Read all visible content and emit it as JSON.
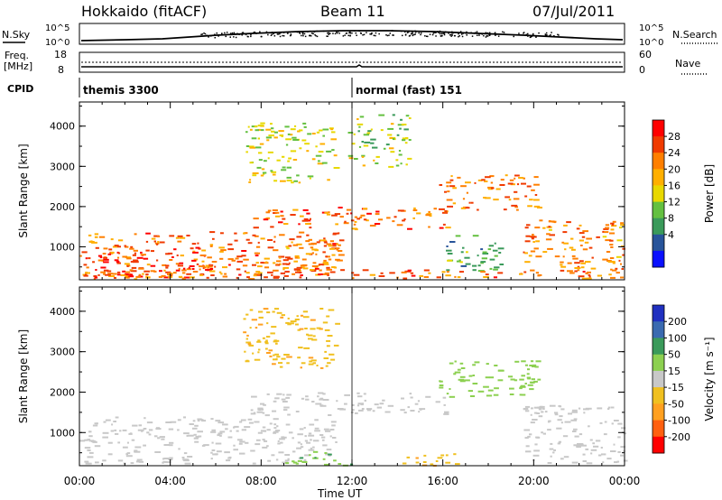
{
  "header": {
    "title": "Hokkaido (fitACF)",
    "beam": "Beam 11",
    "date": "07/Jul/2011"
  },
  "sky_panel": {
    "left_label": "N.Sky",
    "right_label": "N.Search",
    "left_ticks": [
      "10^5",
      "10^0"
    ],
    "right_ticks": [
      "10^5",
      "10^0"
    ]
  },
  "freq_panel": {
    "left_label_1": "Freq.",
    "left_label_2": "[MHz]",
    "right_label": "Nave",
    "left_ticks": [
      "18",
      "8"
    ],
    "right_ticks": [
      "60",
      "0"
    ]
  },
  "cpid_panel": {
    "label": "CPID",
    "modes": [
      {
        "name": "themis 3300",
        "start_hour": 0.0
      },
      {
        "name": "normal (fast) 151",
        "start_hour": 12.0
      }
    ]
  },
  "chart_data": [
    {
      "type": "heatmap",
      "quantity": "Power",
      "ylabel": "Slant Range [km]",
      "xlabel": "Time UT",
      "colorbar_label": "Power [dB]",
      "ylim": [
        180,
        4600
      ],
      "xlim": [
        0,
        24
      ],
      "x_ticks": [
        "00:00",
        "04:00",
        "08:00",
        "12:00",
        "16:00",
        "20:00",
        "00:00"
      ],
      "y_ticks": [
        1000,
        2000,
        3000,
        4000
      ],
      "colorbar": {
        "ticks": [
          "28",
          "24",
          "20",
          "16",
          "12",
          "8",
          "4"
        ],
        "colors": [
          "#ff0000",
          "#f03a00",
          "#ff7f00",
          "#ffaf00",
          "#e8d800",
          "#64c040",
          "#3a9a5a",
          "#28549a",
          "#0a10ff"
        ]
      },
      "regions": [
        {
          "t0": 0.0,
          "t1": 11.5,
          "r0": 250,
          "r1": 1400,
          "v": 24
        },
        {
          "t0": 0.0,
          "t1": 6.0,
          "r0": 250,
          "r1": 900,
          "v": 28
        },
        {
          "t0": 7.5,
          "t1": 16.2,
          "r0": 1450,
          "r1": 2000,
          "v": 25
        },
        {
          "t0": 15.8,
          "t1": 20.2,
          "r0": 1900,
          "r1": 2800,
          "v": 23
        },
        {
          "t0": 19.5,
          "t1": 24.0,
          "r0": 250,
          "r1": 1700,
          "v": 22
        },
        {
          "t0": 7.2,
          "t1": 11.3,
          "r0": 2600,
          "r1": 4100,
          "v": 16
        },
        {
          "t0": 8.5,
          "t1": 11.5,
          "r0": 400,
          "r1": 1200,
          "v": 22
        },
        {
          "t0": 16.0,
          "t1": 18.5,
          "r0": 400,
          "r1": 1300,
          "v": 10
        },
        {
          "t0": 0.0,
          "t1": 24.0,
          "r0": 220,
          "r1": 450,
          "v": 24
        },
        {
          "t0": 11.8,
          "t1": 14.5,
          "r0": 3000,
          "r1": 4300,
          "v": 14
        }
      ]
    },
    {
      "type": "heatmap",
      "quantity": "Velocity",
      "ylabel": "Slant Range [km]",
      "xlabel": "Time UT",
      "colorbar_label": "Velocity [m s^-1]",
      "ylim": [
        180,
        4600
      ],
      "xlim": [
        0,
        24
      ],
      "x_ticks": [
        "00:00",
        "04:00",
        "08:00",
        "12:00",
        "16:00",
        "20:00",
        "00:00"
      ],
      "y_ticks": [
        1000,
        2000,
        3000,
        4000
      ],
      "colorbar": {
        "ticks": [
          "200",
          "100",
          "50",
          "15",
          "-15",
          "-50",
          "-100",
          "-200"
        ],
        "colors": [
          "#2030c0",
          "#3a6ab0",
          "#3a9a5a",
          "#8cd050",
          "#c8c8c8",
          "#f0c020",
          "#ffa020",
          "#ff6010",
          "#ff0000"
        ]
      },
      "regions": [
        {
          "t0": 0.0,
          "t1": 11.5,
          "r0": 250,
          "r1": 1400,
          "v": 0
        },
        {
          "t0": 7.5,
          "t1": 16.2,
          "r0": 1450,
          "r1": 2000,
          "v": 0
        },
        {
          "t0": 15.8,
          "t1": 20.2,
          "r0": 1900,
          "r1": 2800,
          "v": 30
        },
        {
          "t0": 19.5,
          "t1": 24.0,
          "r0": 250,
          "r1": 1700,
          "v": 0
        },
        {
          "t0": 7.2,
          "t1": 11.3,
          "r0": 2600,
          "r1": 4100,
          "v": -40
        },
        {
          "t0": 9.0,
          "t1": 12.0,
          "r0": 200,
          "r1": 550,
          "v": 40
        },
        {
          "t0": 14.0,
          "t1": 17.0,
          "r0": 200,
          "r1": 500,
          "v": -40
        }
      ]
    }
  ]
}
